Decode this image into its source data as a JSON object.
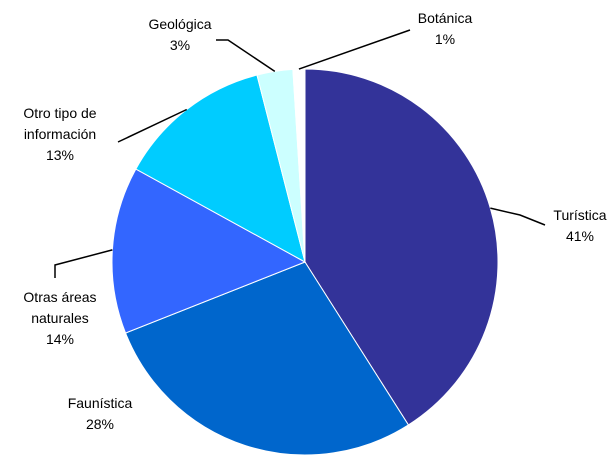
{
  "chart_data": {
    "type": "pie",
    "categories": [
      "Turística",
      "Faunística",
      "Otras áreas naturales",
      "Otro tipo de información",
      "Geológica",
      "Botánica"
    ],
    "values": [
      41,
      28,
      14,
      13,
      3,
      1
    ],
    "value_labels": [
      "41%",
      "28%",
      "14%",
      "13%",
      "3%",
      "1%"
    ],
    "colors": [
      "#333399",
      "#0066cc",
      "#3366ff",
      "#00ccff",
      "#ccffff",
      "#ffffff"
    ]
  }
}
